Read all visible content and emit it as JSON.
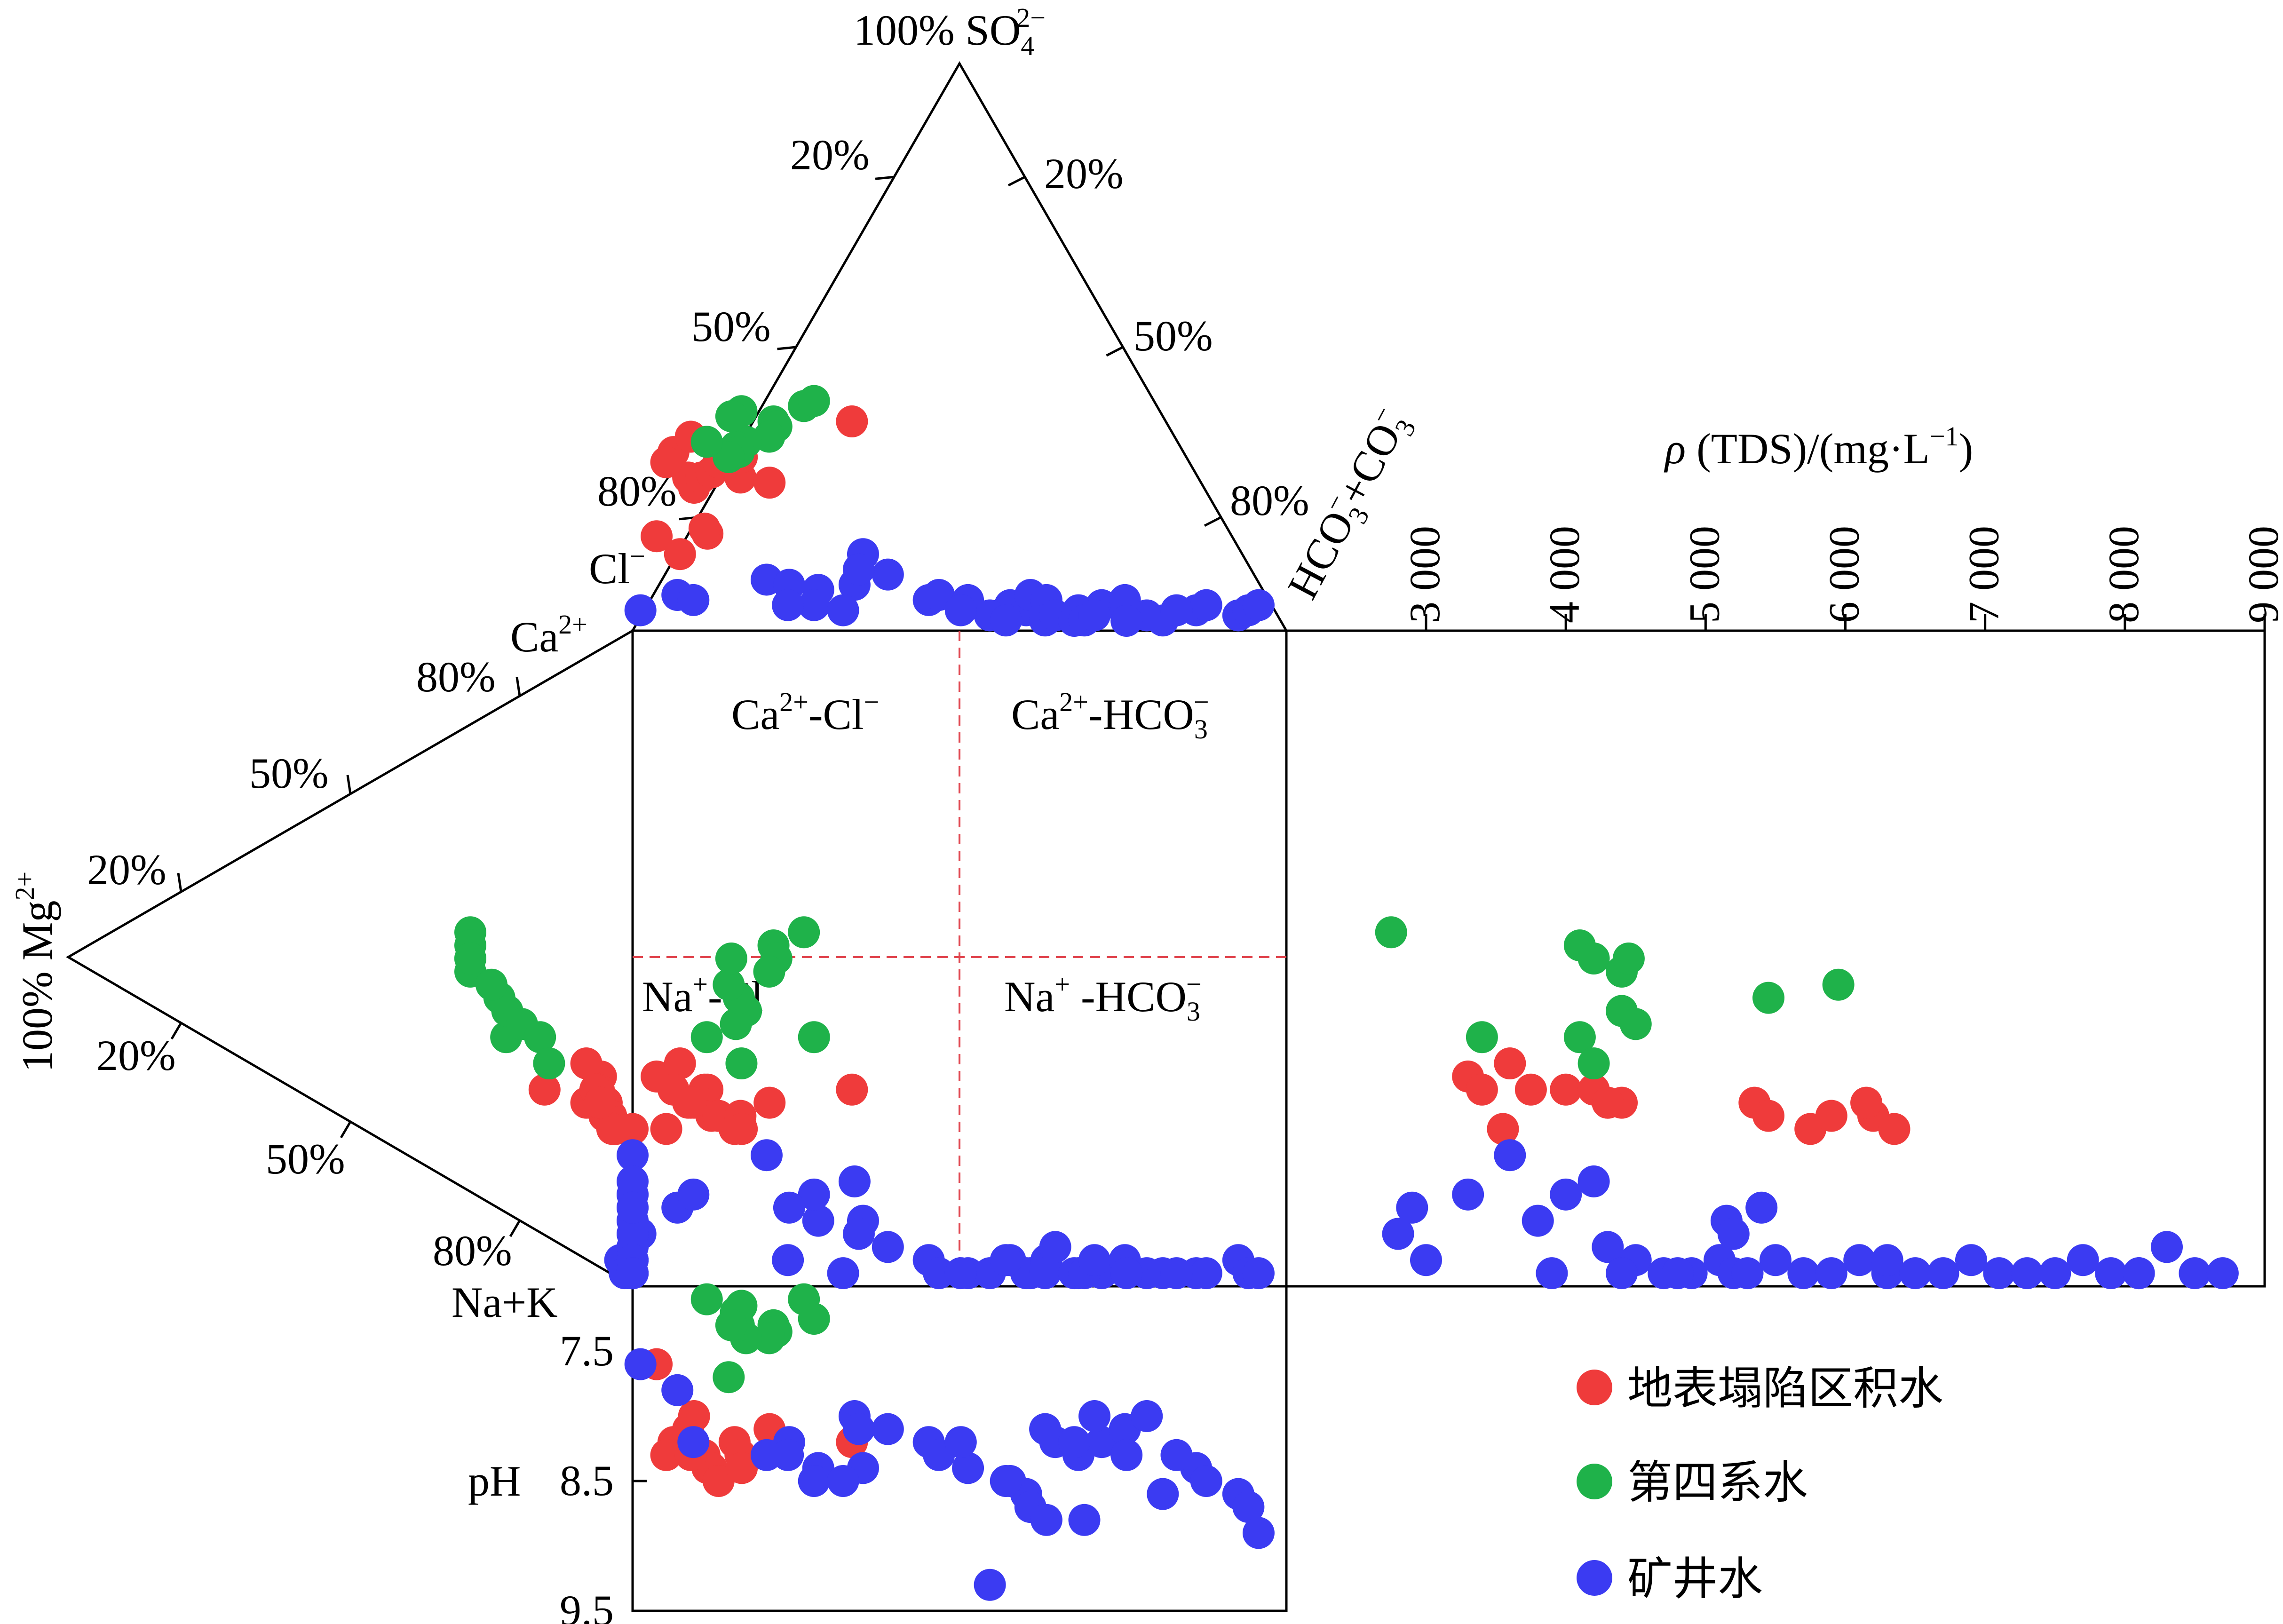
{
  "triangle_top": {
    "apex_label": "100% SO",
    "apex_sub": "4",
    "apex_sup": "2−",
    "left_ticks": [
      "20%",
      "50%",
      "80%"
    ],
    "right_ticks": [
      "20%",
      "50%",
      "80%"
    ],
    "left_corner_label": "Cl",
    "left_corner_sup": "−",
    "right_corner_label": "HCO",
    "right_corner_sub": "3",
    "right_corner_sup": "−",
    "right_corner_tail": "+CO",
    "right_corner_tail_sub": "3",
    "right_corner_tail_sup": "−"
  },
  "triangle_left": {
    "apex_label": "100% Mg",
    "apex_sup": "2+",
    "upper_ticks": [
      "80%",
      "50%",
      "20%"
    ],
    "lower_ticks": [
      "20%",
      "50%",
      "80%"
    ],
    "top_corner_label": "Ca",
    "top_corner_sup": "2+",
    "bottom_corner_label": "Na+K"
  },
  "quadrants": {
    "ca_cl": {
      "main": "Ca",
      "sup": "2+",
      "rest": "-Cl",
      "rest_sup": "−"
    },
    "ca_hco3": {
      "main": "Ca",
      "sup": "2+",
      "rest": "-HCO",
      "rest_sub": "3",
      "rest_sup": "−"
    },
    "na_cl": {
      "main": "Na",
      "sup": "+",
      "rest": "-Cl",
      "rest_sup": "−"
    },
    "na_hco3": {
      "main": "Na",
      "sup": "+",
      "rest": " -HCO",
      "rest_sub": "3",
      "rest_sup": "−"
    }
  },
  "tds_axis": {
    "title_rho": "ρ",
    "title_rest": " (TDS)/(mg·L",
    "title_sup": "−1",
    "title_end": ")",
    "ticks": [
      "3 000",
      "4 000",
      "5 000",
      "6 000",
      "7 000",
      "8 000",
      "9 000"
    ]
  },
  "ph_axis": {
    "title": "pH",
    "ticks": [
      "7.5",
      "8.5",
      "9.5"
    ]
  },
  "colors": {
    "surface": "#ef3b3b",
    "quaternary": "#1fb24a",
    "mine": "#3b3bf2",
    "divider": "#e0464f"
  },
  "legend": [
    {
      "label": "地表塌陷区积水",
      "color": "#ef3b3b"
    },
    {
      "label": "第四系水",
      "color": "#1fb24a"
    },
    {
      "label": "矿井水",
      "color": "#3b3bf2"
    }
  ],
  "chart_data": {
    "type": "scatter",
    "note_units": "anion/cation in % meq; TDS in mg/L; pH",
    "series": [
      {
        "name": "地表塌陷区积水",
        "color": "#ef3b3b",
        "cl_pct": [
          88,
          86,
          80,
          80,
          78,
          78,
          76,
          74,
          70,
          72,
          70,
          68,
          66,
          78,
          80,
          48,
          74
        ],
        "so4_pct": [
          37,
          30,
          38,
          40,
          60,
          56,
          60,
          62,
          64,
          66,
          60,
          68,
          58,
          70,
          66,
          82,
          76
        ],
        "na_k_pct": [
          68,
          66,
          70,
          70,
          72,
          72,
          72,
          74,
          76,
          74,
          74,
          76,
          72,
          70,
          76,
          70,
          72
        ],
        "tds": [
          3300,
          3600,
          3750,
          4000,
          4300,
          4400,
          5350,
          5450,
          5750,
          5900,
          6200,
          6350,
          6150,
          3400,
          3550,
          4200,
          4300
        ],
        "ph": [
          7.6,
          8.2,
          8.4,
          8.3,
          8.1,
          8.0,
          8.3,
          8.4,
          8.2,
          8.5,
          8.3,
          8.4,
          8.1,
          8.2,
          8.3,
          8.2,
          8.3
        ]
      },
      {
        "name": "第四系水",
        "color": "#1fb24a",
        "cl_pct": [
          54,
          52,
          60,
          60,
          62,
          66,
          68,
          68,
          70,
          72,
          64,
          66
        ],
        "so4_pct": [
          88,
          90,
          82,
          80,
          76,
          74,
          72,
          70,
          68,
          74,
          86,
          84
        ],
        "na_k_pct": [
          46,
          62,
          48,
          50,
          52,
          58,
          60,
          56,
          54,
          62,
          66,
          50
        ],
        "tds": [
          2750,
          3400,
          4100,
          4200,
          4400,
          4400,
          4500,
          5450,
          5950,
          4100,
          4200,
          4450
        ],
        "ph": [
          7.1,
          7.25,
          7.3,
          7.35,
          7.4,
          7.4,
          7.2,
          7.3,
          7.7,
          7.1,
          7.15,
          7.3
        ]
      },
      {
        "name": "矿井水",
        "color": "#3b3bf2",
        "cl_pct": [
          97,
          90,
          88,
          75,
          68,
          70,
          62,
          56,
          52,
          50,
          46,
          40,
          38,
          36,
          34,
          30,
          26,
          22,
          20,
          12,
          10,
          6,
          4,
          2,
          44,
          42,
          48,
          36,
          34,
          32,
          30,
          28,
          24,
          18,
          15,
          58,
          60,
          72,
          74,
          66
        ],
        "so4_pct": [
          8,
          14,
          12,
          20,
          16,
          10,
          18,
          22,
          12,
          14,
          12,
          10,
          8,
          14,
          12,
          8,
          10,
          12,
          6,
          8,
          10,
          6,
          8,
          10,
          6,
          4,
          8,
          4,
          6,
          2,
          4,
          6,
          2,
          4,
          8,
          30,
          24,
          18,
          10,
          8
        ],
        "na_k_pct": [
          92,
          88,
          86,
          80,
          90,
          86,
          84,
          94,
          96,
          98,
          98,
          96,
          98,
          98,
          96,
          98,
          98,
          96,
          98,
          98,
          98,
          96,
          98,
          98,
          98,
          96,
          98,
          98,
          94,
          98,
          98,
          96,
          98,
          98,
          98,
          90,
          92,
          88,
          96,
          98
        ],
        "tds": [
          2800,
          2900,
          3300,
          3600,
          3800,
          4000,
          4200,
          4300,
          4500,
          4700,
          4900,
          5100,
          5200,
          5300,
          5500,
          5700,
          5900,
          6100,
          6300,
          6500,
          6700,
          6900,
          7100,
          7300,
          7500,
          7700,
          7900,
          8100,
          8300,
          8500,
          8700,
          3000,
          3900,
          4400,
          4800,
          5150,
          5200,
          5400,
          6300,
          8100
        ],
        "ph": [
          7.6,
          7.8,
          8.2,
          8.3,
          8.4,
          8.5,
          8.0,
          8.1,
          8.2,
          8.3,
          8.4,
          8.5,
          8.6,
          8.7,
          8.8,
          8.3,
          8.2,
          8.1,
          8.0,
          8.4,
          8.5,
          8.6,
          8.7,
          8.9,
          9.3,
          8.5,
          8.2,
          8.1,
          8.2,
          8.2,
          8.8,
          8.0,
          8.3,
          8.6,
          8.3,
          8.4,
          8.1,
          8.2,
          8.3,
          8.5
        ]
      }
    ]
  }
}
